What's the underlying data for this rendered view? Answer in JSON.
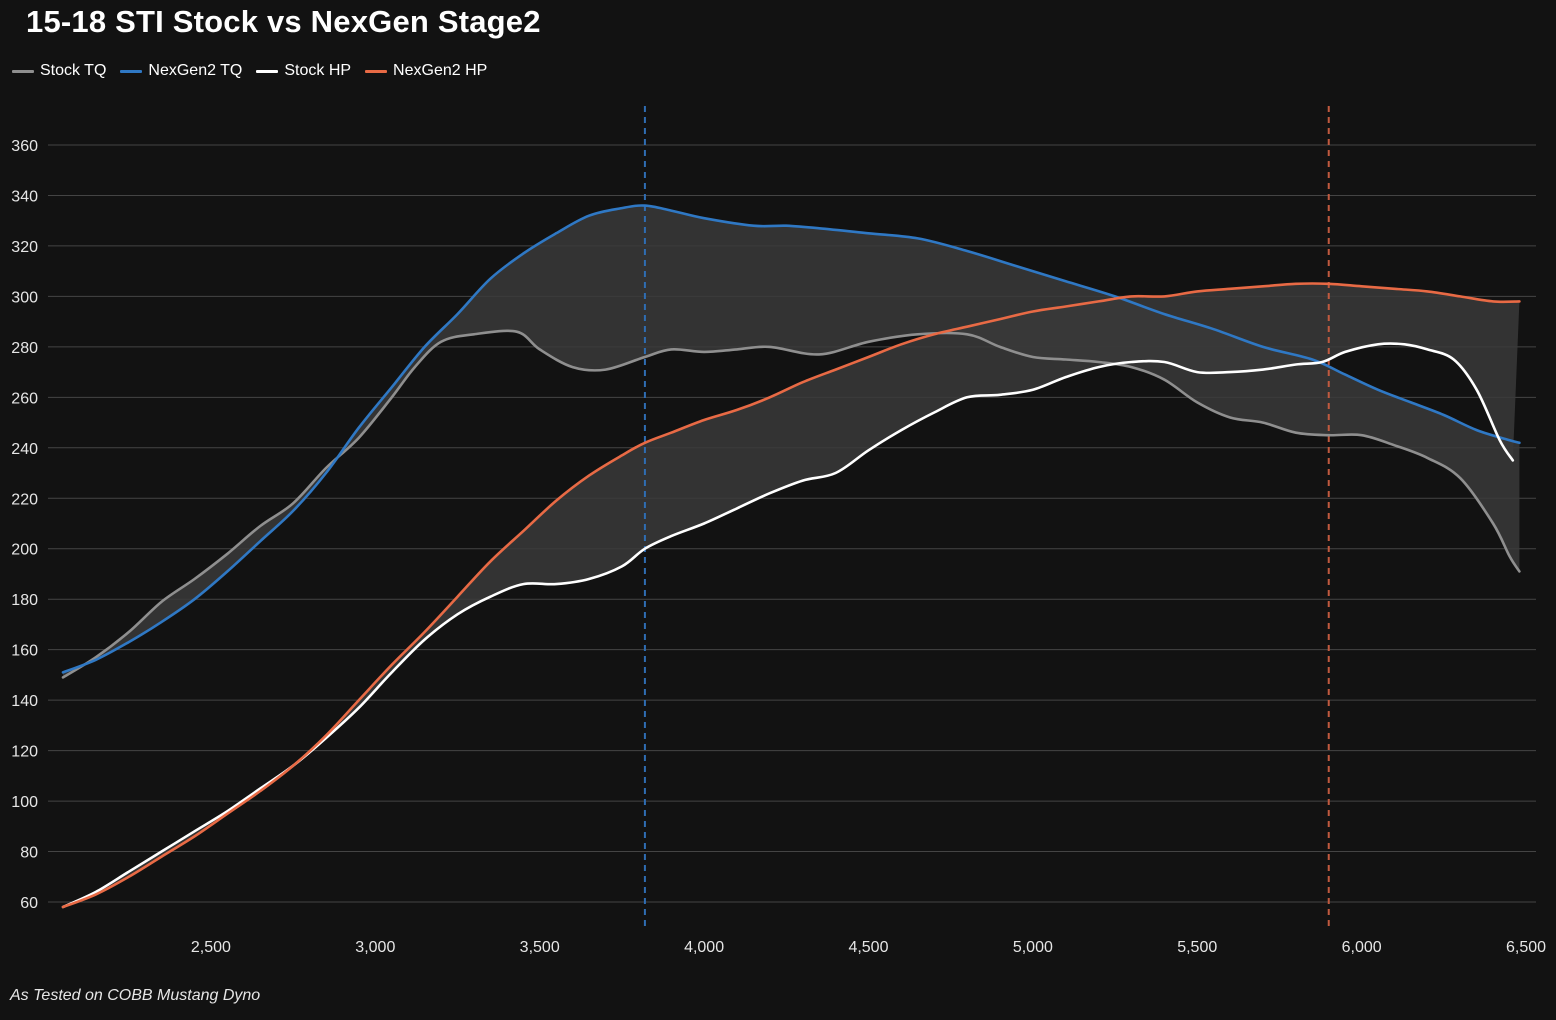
{
  "title": "15-18 STI Stock vs NexGen Stage2",
  "footnote": "As Tested on COBB Mustang Dyno",
  "chart_data": {
    "type": "line",
    "title": "15-18 STI Stock vs NexGen Stage2",
    "xlim": [
      2050,
      6500
    ],
    "ylim": [
      50,
      370
    ],
    "x_ticks": [
      2500,
      3000,
      3500,
      4000,
      4500,
      5000,
      5500,
      6000,
      6500
    ],
    "x_tick_labels": [
      "2,500",
      "3,000",
      "3,500",
      "4,000",
      "4,500",
      "5,000",
      "5,500",
      "6,000",
      "6,500"
    ],
    "y_ticks": [
      60,
      80,
      100,
      120,
      140,
      160,
      180,
      200,
      220,
      240,
      260,
      280,
      300,
      320,
      340,
      360
    ],
    "y_tick_labels": [
      "60",
      "80",
      "100",
      "120",
      "140",
      "160",
      "180",
      "200",
      "220",
      "240",
      "260",
      "280",
      "300",
      "320",
      "340",
      "360"
    ],
    "grid": "horizontal",
    "legend_position": "top-left",
    "vertical_markers": [
      {
        "x": 3820,
        "color": "#2f6db3"
      },
      {
        "x": 5900,
        "color": "#c15a3f"
      }
    ],
    "shaded_regions": [
      {
        "between": [
          "NexGen2 TQ",
          "Stock TQ"
        ],
        "color": "#3a3a3a"
      },
      {
        "between": [
          "NexGen2 HP",
          "Stock HP"
        ],
        "color": "#3a3a3a"
      }
    ],
    "series": [
      {
        "name": "Stock TQ",
        "color": "#8f8f8f",
        "points": [
          [
            2050,
            149
          ],
          [
            2150,
            157
          ],
          [
            2250,
            167
          ],
          [
            2350,
            179
          ],
          [
            2450,
            188
          ],
          [
            2550,
            198
          ],
          [
            2650,
            209
          ],
          [
            2750,
            218
          ],
          [
            2850,
            232
          ],
          [
            2950,
            244
          ],
          [
            3050,
            260
          ],
          [
            3120,
            272
          ],
          [
            3200,
            282
          ],
          [
            3300,
            285
          ],
          [
            3430,
            286
          ],
          [
            3500,
            279
          ],
          [
            3600,
            272
          ],
          [
            3700,
            271
          ],
          [
            3820,
            276
          ],
          [
            3900,
            279
          ],
          [
            4000,
            278
          ],
          [
            4100,
            279
          ],
          [
            4200,
            280
          ],
          [
            4350,
            277
          ],
          [
            4500,
            282
          ],
          [
            4650,
            285
          ],
          [
            4800,
            285
          ],
          [
            4900,
            280
          ],
          [
            5000,
            276
          ],
          [
            5100,
            275
          ],
          [
            5200,
            274
          ],
          [
            5300,
            272
          ],
          [
            5400,
            267
          ],
          [
            5500,
            258
          ],
          [
            5600,
            252
          ],
          [
            5700,
            250
          ],
          [
            5800,
            246
          ],
          [
            5900,
            245
          ],
          [
            6000,
            245
          ],
          [
            6100,
            241
          ],
          [
            6200,
            236
          ],
          [
            6300,
            228
          ],
          [
            6400,
            210
          ],
          [
            6450,
            197
          ],
          [
            6480,
            191
          ]
        ]
      },
      {
        "name": "NexGen2 TQ",
        "color": "#2f78c4",
        "points": [
          [
            2050,
            151
          ],
          [
            2150,
            156
          ],
          [
            2250,
            163
          ],
          [
            2350,
            171
          ],
          [
            2450,
            180
          ],
          [
            2550,
            191
          ],
          [
            2650,
            203
          ],
          [
            2750,
            215
          ],
          [
            2850,
            230
          ],
          [
            2950,
            248
          ],
          [
            3050,
            264
          ],
          [
            3150,
            280
          ],
          [
            3250,
            293
          ],
          [
            3350,
            307
          ],
          [
            3450,
            317
          ],
          [
            3550,
            325
          ],
          [
            3650,
            332
          ],
          [
            3750,
            335
          ],
          [
            3820,
            336
          ],
          [
            3900,
            334
          ],
          [
            4000,
            331
          ],
          [
            4150,
            328
          ],
          [
            4250,
            328
          ],
          [
            4350,
            327
          ],
          [
            4500,
            325
          ],
          [
            4650,
            323
          ],
          [
            4800,
            318
          ],
          [
            4950,
            312
          ],
          [
            5100,
            306
          ],
          [
            5250,
            300
          ],
          [
            5400,
            293
          ],
          [
            5550,
            287
          ],
          [
            5700,
            280
          ],
          [
            5850,
            275
          ],
          [
            5950,
            269
          ],
          [
            6050,
            263
          ],
          [
            6150,
            258
          ],
          [
            6250,
            253
          ],
          [
            6350,
            247
          ],
          [
            6450,
            243
          ],
          [
            6480,
            242
          ]
        ]
      },
      {
        "name": "Stock HP",
        "color": "#ffffff",
        "points": [
          [
            2050,
            58
          ],
          [
            2150,
            64
          ],
          [
            2250,
            72
          ],
          [
            2350,
            80
          ],
          [
            2450,
            88
          ],
          [
            2550,
            96
          ],
          [
            2650,
            105
          ],
          [
            2750,
            114
          ],
          [
            2850,
            125
          ],
          [
            2950,
            137
          ],
          [
            3050,
            151
          ],
          [
            3150,
            164
          ],
          [
            3250,
            174
          ],
          [
            3350,
            181
          ],
          [
            3450,
            186
          ],
          [
            3550,
            186
          ],
          [
            3650,
            188
          ],
          [
            3750,
            193
          ],
          [
            3820,
            200
          ],
          [
            3900,
            205
          ],
          [
            4000,
            210
          ],
          [
            4100,
            216
          ],
          [
            4200,
            222
          ],
          [
            4300,
            227
          ],
          [
            4400,
            230
          ],
          [
            4500,
            239
          ],
          [
            4600,
            247
          ],
          [
            4700,
            254
          ],
          [
            4800,
            260
          ],
          [
            4900,
            261
          ],
          [
            5000,
            263
          ],
          [
            5100,
            268
          ],
          [
            5200,
            272
          ],
          [
            5300,
            274
          ],
          [
            5400,
            274
          ],
          [
            5500,
            270
          ],
          [
            5600,
            270
          ],
          [
            5700,
            271
          ],
          [
            5800,
            273
          ],
          [
            5880,
            274
          ],
          [
            5950,
            278
          ],
          [
            6050,
            281
          ],
          [
            6130,
            281
          ],
          [
            6200,
            279
          ],
          [
            6280,
            275
          ],
          [
            6350,
            263
          ],
          [
            6420,
            243
          ],
          [
            6460,
            235
          ]
        ]
      },
      {
        "name": "NexGen2 HP",
        "color": "#e86a45",
        "points": [
          [
            2050,
            58
          ],
          [
            2150,
            63
          ],
          [
            2250,
            70
          ],
          [
            2350,
            78
          ],
          [
            2450,
            86
          ],
          [
            2550,
            95
          ],
          [
            2650,
            104
          ],
          [
            2750,
            114
          ],
          [
            2850,
            126
          ],
          [
            2950,
            140
          ],
          [
            3050,
            154
          ],
          [
            3150,
            167
          ],
          [
            3250,
            181
          ],
          [
            3350,
            195
          ],
          [
            3450,
            207
          ],
          [
            3550,
            219
          ],
          [
            3650,
            229
          ],
          [
            3750,
            237
          ],
          [
            3820,
            242
          ],
          [
            3900,
            246
          ],
          [
            4000,
            251
          ],
          [
            4100,
            255
          ],
          [
            4200,
            260
          ],
          [
            4300,
            266
          ],
          [
            4400,
            271
          ],
          [
            4500,
            276
          ],
          [
            4600,
            281
          ],
          [
            4700,
            285
          ],
          [
            4800,
            288
          ],
          [
            4900,
            291
          ],
          [
            5000,
            294
          ],
          [
            5100,
            296
          ],
          [
            5200,
            298
          ],
          [
            5300,
            300
          ],
          [
            5400,
            300
          ],
          [
            5500,
            302
          ],
          [
            5600,
            303
          ],
          [
            5700,
            304
          ],
          [
            5800,
            305
          ],
          [
            5900,
            305
          ],
          [
            6000,
            304
          ],
          [
            6100,
            303
          ],
          [
            6200,
            302
          ],
          [
            6300,
            300
          ],
          [
            6400,
            298
          ],
          [
            6480,
            298
          ]
        ]
      }
    ]
  }
}
